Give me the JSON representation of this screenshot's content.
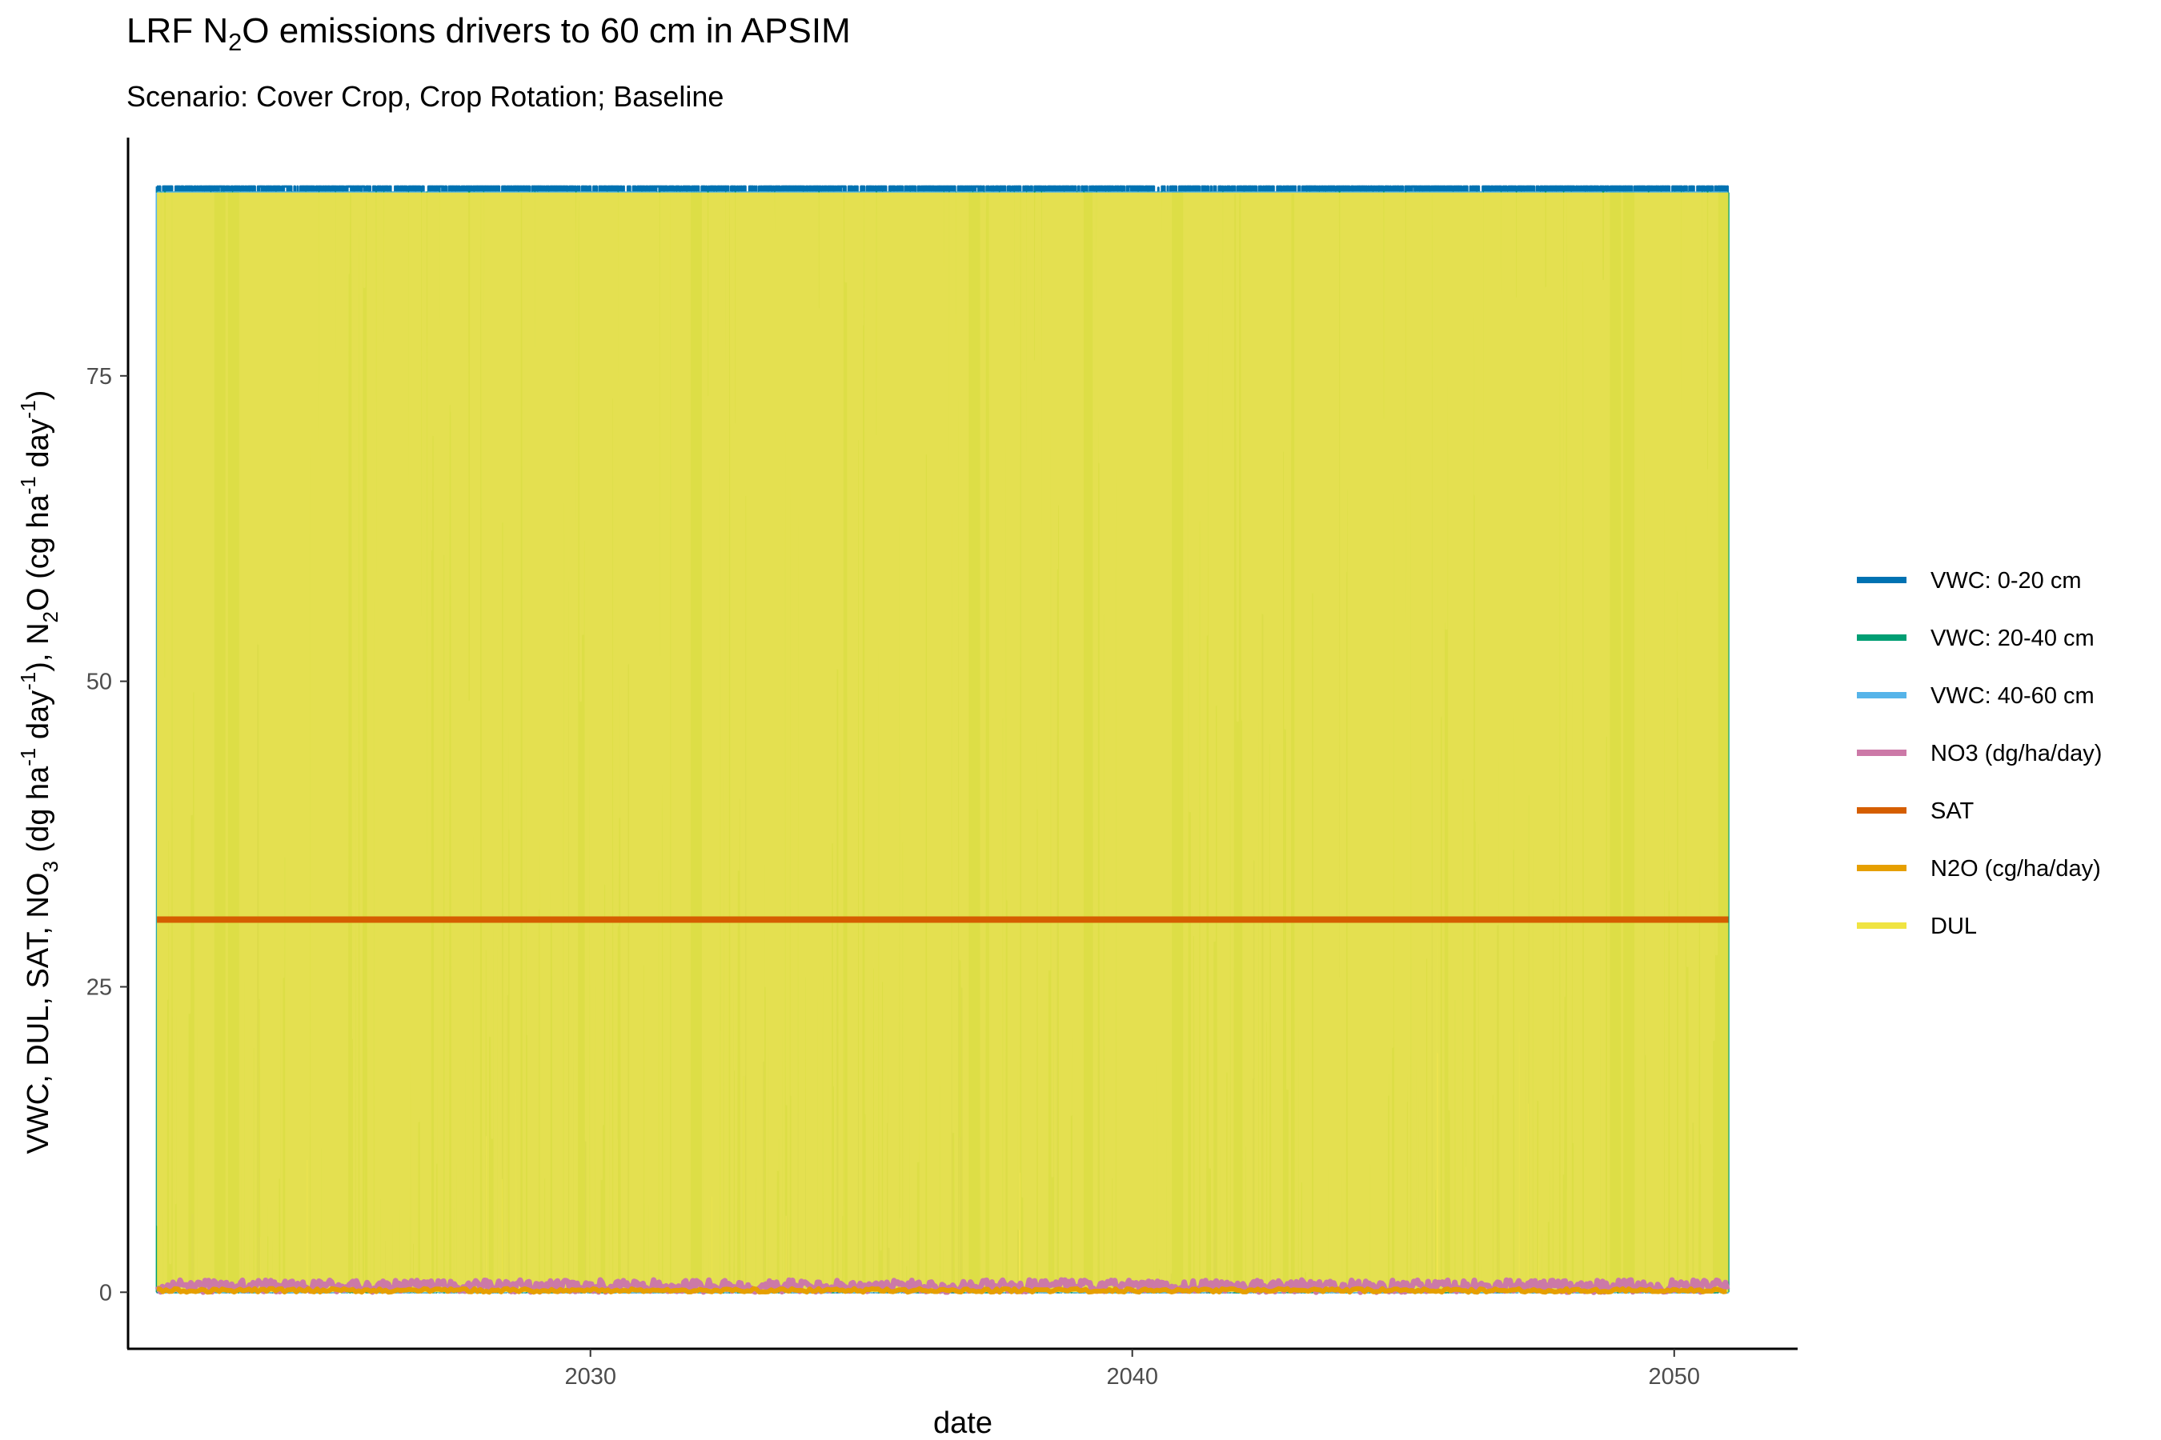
{
  "chart_data": {
    "type": "line",
    "title": {
      "prefix": "LRF N",
      "sub": "2",
      "suffix": "O emissions drivers to 60 cm in APSIM"
    },
    "subtitle": "Scenario: Cover Crop, Crop Rotation; Baseline",
    "xlabel": "date",
    "ylabel": {
      "p1": "VWC, DUL, SAT, NO",
      "p1_sub": "3",
      "p2": " (dg ha",
      "p2_sup": "-1",
      "p3": " day",
      "p3_sup": "-1",
      "p4": "), N",
      "p4_sub": "2",
      "p5": "O  (cg ha",
      "p5_sup": "-1",
      "p6": " day",
      "p6_sup": "-1",
      "p7": ")"
    },
    "x_range": [
      "2021-07-01",
      "2052-04-01"
    ],
    "y_range": [
      -4.5,
      94.5
    ],
    "x_ticks": [
      {
        "value": "2030-01-01",
        "label": "2030"
      },
      {
        "value": "2040-01-01",
        "label": "2040"
      },
      {
        "value": "2050-01-01",
        "label": "2050"
      }
    ],
    "y_ticks": [
      {
        "value": 0,
        "label": "0"
      },
      {
        "value": 25,
        "label": "25"
      },
      {
        "value": 50,
        "label": "50"
      },
      {
        "value": 75,
        "label": "75"
      }
    ],
    "grid": false,
    "legend_position": "right",
    "series": [
      {
        "name": "VWC: 0-20 cm",
        "color": "#0072B2",
        "range": [
          0,
          90.5
        ]
      },
      {
        "name": "VWC: 20-40 cm",
        "color": "#009E73",
        "range": [
          0,
          90
        ],
        "dominant_dates": [
          "2023-03-01",
          "2023-06-01",
          "2031-12-15",
          "2037-02-01",
          "2039-03-01",
          "2040-11-01",
          "2048-12-01",
          "2049-03-01",
          "2050-12-01"
        ]
      },
      {
        "name": "VWC: 40-60 cm",
        "color": "#56B4E9",
        "range": [
          0,
          90
        ],
        "dominant_dates": [
          "2022-12-15",
          "2025-06-01",
          "2031-10-01",
          "2037-07-01",
          "2038-10-01",
          "2039-01-01",
          "2049-08-01"
        ]
      },
      {
        "name": "NO3 (dg/ha/day)",
        "color": "#CC79A7",
        "range": [
          0,
          1
        ]
      },
      {
        "name": "SAT",
        "color": "#D55E00",
        "constant": 30.5
      },
      {
        "name": "N2O (cg/ha/day)",
        "color": "#E69F00",
        "range": [
          0,
          0.3
        ]
      },
      {
        "name": "DUL",
        "color": "#F0E442",
        "range": [
          0,
          90
        ]
      }
    ]
  }
}
